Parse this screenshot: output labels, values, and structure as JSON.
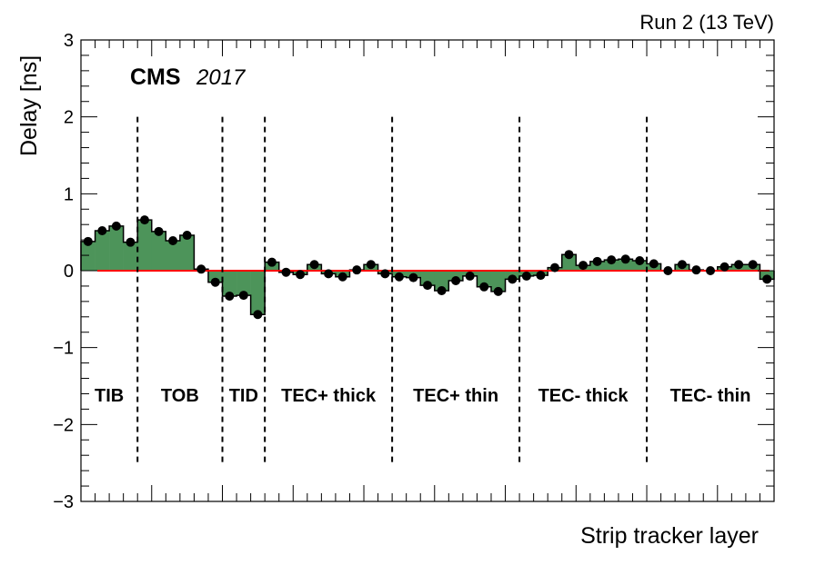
{
  "chart_data": {
    "type": "bar",
    "title": "Run 2 (13 TeV)",
    "experiment": "CMS",
    "year": "2017",
    "xlabel": "Strip tracker layer",
    "ylabel": "Delay [ns]",
    "ylim": [
      -3,
      3
    ],
    "yticks": [
      "3",
      "2",
      "1",
      "0",
      "−1",
      "−2",
      "−3"
    ],
    "ytick_values": [
      3,
      2,
      1,
      0,
      -1,
      -2,
      -3
    ],
    "fill_color": "#4d945a",
    "zero_line_color": "#ff0000",
    "regions": [
      {
        "name": "TIB",
        "bins": 4
      },
      {
        "name": "TOB",
        "bins": 6
      },
      {
        "name": "TID",
        "bins": 3
      },
      {
        "name": "TEC+ thick",
        "bins": 9
      },
      {
        "name": "TEC+ thin",
        "bins": 9
      },
      {
        "name": "TEC- thick",
        "bins": 9
      },
      {
        "name": "TEC- thin",
        "bins": 9
      }
    ],
    "values": [
      0.38,
      0.52,
      0.58,
      0.37,
      0.66,
      0.51,
      0.39,
      0.46,
      0.02,
      -0.15,
      -0.33,
      -0.32,
      -0.57,
      0.11,
      -0.02,
      -0.05,
      0.08,
      -0.04,
      -0.08,
      0.01,
      0.08,
      -0.04,
      -0.08,
      -0.09,
      -0.19,
      -0.26,
      -0.13,
      -0.07,
      -0.21,
      -0.27,
      -0.11,
      -0.07,
      -0.06,
      0.04,
      0.21,
      0.07,
      0.12,
      0.14,
      0.15,
      0.13,
      0.09,
      0.0,
      0.08,
      0.01,
      0.0,
      0.05,
      0.08,
      0.08,
      -0.11
    ]
  }
}
